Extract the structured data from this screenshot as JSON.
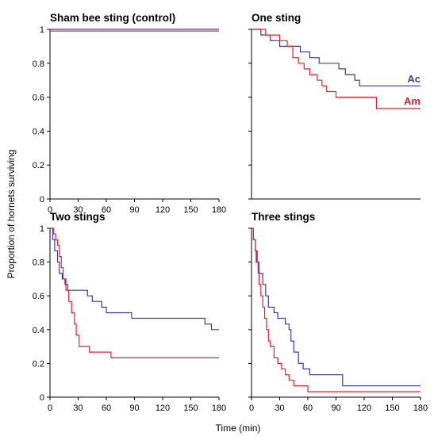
{
  "figure": {
    "ylabel": "Proportion of hornets surviving",
    "xlabel": "Time (min)"
  },
  "colors": {
    "Ac": "#3f3aa6",
    "Am": "#e8202a",
    "overlap": "#8a6a1e"
  },
  "chart_data": [
    {
      "type": "line",
      "step": true,
      "title": "Sham bee sting (control)",
      "xlim": [
        0,
        180
      ],
      "ylim": [
        0,
        1
      ],
      "x_ticks": [
        "0",
        "30",
        "60",
        "90",
        "120",
        "150",
        "180"
      ],
      "y_ticks": [
        "0",
        "0.2",
        "0.4",
        "0.6",
        "0.8",
        "1"
      ],
      "series": [
        {
          "key": "Ac",
          "points": [
            [
              0,
              1.0
            ],
            [
              180,
              1.0
            ]
          ]
        },
        {
          "key": "Am",
          "points": [
            [
              0,
              0.99
            ],
            [
              180,
              0.99
            ]
          ]
        }
      ]
    },
    {
      "type": "line",
      "step": true,
      "title": "One sting",
      "xlim": [
        0,
        180
      ],
      "ylim": [
        0,
        1
      ],
      "x_ticks": [],
      "y_ticks": [],
      "legend": [
        {
          "name": "Ac",
          "key": "Ac"
        },
        {
          "name": "Am",
          "key": "Am"
        }
      ],
      "series": [
        {
          "key": "Ac",
          "points": [
            [
              0,
              1.0
            ],
            [
              10,
              1.0
            ],
            [
              10,
              0.967
            ],
            [
              20,
              0.967
            ],
            [
              20,
              0.933
            ],
            [
              30,
              0.933
            ],
            [
              30,
              0.9
            ],
            [
              52,
              0.9
            ],
            [
              52,
              0.867
            ],
            [
              62,
              0.867
            ],
            [
              62,
              0.833
            ],
            [
              72,
              0.833
            ],
            [
              72,
              0.8
            ],
            [
              93,
              0.8
            ],
            [
              93,
              0.767
            ],
            [
              100,
              0.767
            ],
            [
              100,
              0.733
            ],
            [
              110,
              0.733
            ],
            [
              110,
              0.7
            ],
            [
              115,
              0.7
            ],
            [
              115,
              0.667
            ],
            [
              180,
              0.667
            ]
          ]
        },
        {
          "key": "Am",
          "points": [
            [
              0,
              1.0
            ],
            [
              15,
              1.0
            ],
            [
              15,
              0.967
            ],
            [
              30,
              0.967
            ],
            [
              30,
              0.933
            ],
            [
              38,
              0.933
            ],
            [
              38,
              0.9
            ],
            [
              44,
              0.9
            ],
            [
              44,
              0.833
            ],
            [
              50,
              0.833
            ],
            [
              50,
              0.8
            ],
            [
              56,
              0.8
            ],
            [
              56,
              0.767
            ],
            [
              62,
              0.767
            ],
            [
              62,
              0.733
            ],
            [
              70,
              0.733
            ],
            [
              70,
              0.7
            ],
            [
              75,
              0.7
            ],
            [
              75,
              0.667
            ],
            [
              80,
              0.667
            ],
            [
              80,
              0.633
            ],
            [
              90,
              0.633
            ],
            [
              90,
              0.6
            ],
            [
              133,
              0.6
            ],
            [
              133,
              0.533
            ],
            [
              180,
              0.533
            ]
          ]
        }
      ]
    },
    {
      "type": "line",
      "step": true,
      "title": "Two stings",
      "xlim": [
        0,
        180
      ],
      "ylim": [
        0,
        1
      ],
      "x_ticks": [
        "0",
        "30",
        "60",
        "90",
        "120",
        "150",
        "180"
      ],
      "y_ticks": [
        "0",
        "0.2",
        "0.4",
        "0.6",
        "0.8",
        "1"
      ],
      "series": [
        {
          "key": "Ac",
          "points": [
            [
              0,
              1.0
            ],
            [
              3,
              1.0
            ],
            [
              3,
              0.933
            ],
            [
              5,
              0.933
            ],
            [
              5,
              0.867
            ],
            [
              8,
              0.867
            ],
            [
              8,
              0.8
            ],
            [
              10,
              0.8
            ],
            [
              10,
              0.733
            ],
            [
              13,
              0.733
            ],
            [
              13,
              0.7
            ],
            [
              16,
              0.7
            ],
            [
              16,
              0.667
            ],
            [
              19,
              0.667
            ],
            [
              19,
              0.633
            ],
            [
              40,
              0.633
            ],
            [
              40,
              0.6
            ],
            [
              45,
              0.6
            ],
            [
              45,
              0.567
            ],
            [
              55,
              0.567
            ],
            [
              55,
              0.533
            ],
            [
              60,
              0.533
            ],
            [
              60,
              0.5
            ],
            [
              87,
              0.5
            ],
            [
              87,
              0.467
            ],
            [
              165,
              0.467
            ],
            [
              165,
              0.433
            ],
            [
              172,
              0.433
            ],
            [
              172,
              0.4
            ],
            [
              180,
              0.4
            ]
          ]
        },
        {
          "key": "Am",
          "points": [
            [
              0,
              1.0
            ],
            [
              4,
              1.0
            ],
            [
              4,
              0.967
            ],
            [
              6,
              0.967
            ],
            [
              6,
              0.933
            ],
            [
              8,
              0.933
            ],
            [
              8,
              0.9
            ],
            [
              10,
              0.9
            ],
            [
              10,
              0.833
            ],
            [
              12,
              0.833
            ],
            [
              12,
              0.767
            ],
            [
              14,
              0.767
            ],
            [
              14,
              0.7
            ],
            [
              17,
              0.7
            ],
            [
              17,
              0.633
            ],
            [
              20,
              0.633
            ],
            [
              20,
              0.567
            ],
            [
              23,
              0.567
            ],
            [
              23,
              0.5
            ],
            [
              26,
              0.5
            ],
            [
              26,
              0.433
            ],
            [
              28,
              0.433
            ],
            [
              28,
              0.367
            ],
            [
              31,
              0.367
            ],
            [
              31,
              0.3
            ],
            [
              42,
              0.3
            ],
            [
              42,
              0.267
            ],
            [
              65,
              0.267
            ],
            [
              65,
              0.233
            ],
            [
              180,
              0.233
            ]
          ]
        }
      ]
    },
    {
      "type": "line",
      "step": true,
      "title": "Three stings",
      "xlim": [
        0,
        180
      ],
      "ylim": [
        0,
        1
      ],
      "x_ticks": [
        "0",
        "30",
        "60",
        "90",
        "120",
        "150",
        "180"
      ],
      "y_ticks": [],
      "series": [
        {
          "key": "Ac",
          "points": [
            [
              0,
              1.0
            ],
            [
              2,
              1.0
            ],
            [
              2,
              0.933
            ],
            [
              4,
              0.933
            ],
            [
              4,
              0.867
            ],
            [
              6,
              0.867
            ],
            [
              6,
              0.8
            ],
            [
              8,
              0.8
            ],
            [
              8,
              0.733
            ],
            [
              12,
              0.733
            ],
            [
              12,
              0.667
            ],
            [
              15,
              0.667
            ],
            [
              15,
              0.6
            ],
            [
              18,
              0.6
            ],
            [
              18,
              0.533
            ],
            [
              24,
              0.533
            ],
            [
              24,
              0.5
            ],
            [
              28,
              0.5
            ],
            [
              28,
              0.467
            ],
            [
              36,
              0.467
            ],
            [
              36,
              0.433
            ],
            [
              40,
              0.433
            ],
            [
              40,
              0.4
            ],
            [
              42,
              0.4
            ],
            [
              42,
              0.333
            ],
            [
              45,
              0.333
            ],
            [
              45,
              0.267
            ],
            [
              50,
              0.267
            ],
            [
              50,
              0.2
            ],
            [
              55,
              0.2
            ],
            [
              55,
              0.167
            ],
            [
              62,
              0.167
            ],
            [
              62,
              0.133
            ],
            [
              97,
              0.133
            ],
            [
              97,
              0.067
            ],
            [
              180,
              0.067
            ]
          ]
        },
        {
          "key": "Am",
          "points": [
            [
              0,
              1.0
            ],
            [
              2,
              1.0
            ],
            [
              2,
              0.933
            ],
            [
              4,
              0.933
            ],
            [
              4,
              0.867
            ],
            [
              5,
              0.867
            ],
            [
              5,
              0.8
            ],
            [
              7,
              0.8
            ],
            [
              7,
              0.733
            ],
            [
              8,
              0.733
            ],
            [
              8,
              0.667
            ],
            [
              10,
              0.667
            ],
            [
              10,
              0.6
            ],
            [
              12,
              0.6
            ],
            [
              12,
              0.533
            ],
            [
              14,
              0.533
            ],
            [
              14,
              0.467
            ],
            [
              16,
              0.467
            ],
            [
              16,
              0.4
            ],
            [
              18,
              0.4
            ],
            [
              18,
              0.333
            ],
            [
              20,
              0.333
            ],
            [
              20,
              0.3
            ],
            [
              24,
              0.3
            ],
            [
              24,
              0.233
            ],
            [
              28,
              0.233
            ],
            [
              28,
              0.2
            ],
            [
              32,
              0.2
            ],
            [
              32,
              0.167
            ],
            [
              36,
              0.167
            ],
            [
              36,
              0.133
            ],
            [
              40,
              0.133
            ],
            [
              40,
              0.1
            ],
            [
              45,
              0.1
            ],
            [
              45,
              0.067
            ],
            [
              60,
              0.067
            ],
            [
              60,
              0.033
            ],
            [
              180,
              0.033
            ]
          ]
        }
      ]
    }
  ]
}
